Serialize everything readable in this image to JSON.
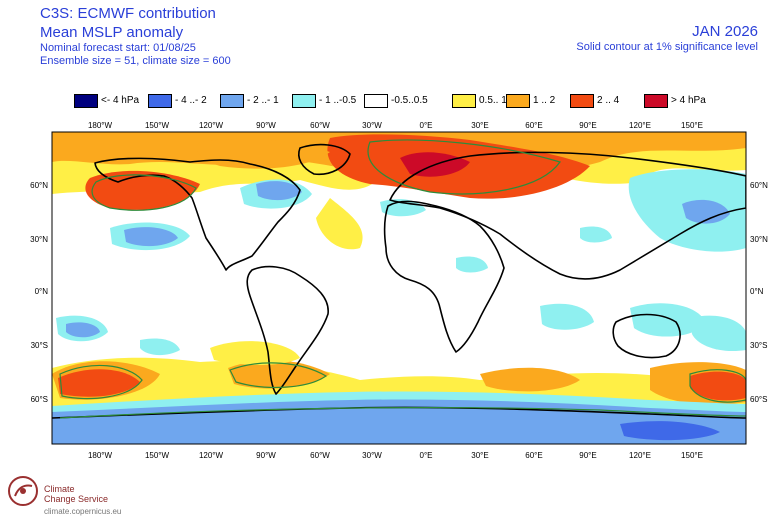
{
  "header": {
    "title_line1": "C3S: ECMWF contribution",
    "title_line2": "Mean MSLP anomaly",
    "forecast_start": "Nominal forecast start: 01/08/25",
    "ensemble": "Ensemble size = 51, climate size = 600",
    "month": "JAN 2026",
    "significance": "Solid contour at 1% significance level"
  },
  "legend": [
    {
      "label": "<- 4 hPa",
      "color": "#00007f"
    },
    {
      "label": "- 4 ..- 2",
      "color": "#3f69e8"
    },
    {
      "label": "- 2 ..- 1",
      "color": "#6fa6ee"
    },
    {
      "label": "- 1 ..-0.5",
      "color": "#8ff0f0"
    },
    {
      "label": "-0.5..0.5",
      "color": "#ffffff"
    },
    {
      "label": "0.5.. 1",
      "color": "#ffef46"
    },
    {
      "label": "1 .. 2",
      "color": "#fba91e"
    },
    {
      "label": "2 .. 4",
      "color": "#f24b12"
    },
    {
      "label": "> 4 hPa",
      "color": "#cc0a28"
    }
  ],
  "map": {
    "lon_labels": [
      "180°W",
      "150°W",
      "120°W",
      "90°W",
      "60°W",
      "30°W",
      "0°E",
      "30°E",
      "60°E",
      "90°E",
      "120°E",
      "150°E"
    ],
    "lat_labels_left": [
      "60°N",
      "30°N",
      "0°N",
      "30°S",
      "60°S"
    ],
    "lat_labels_right": [
      "60°N",
      "30°N",
      "0°N",
      "30°S",
      "60°S"
    ]
  },
  "footer": {
    "org_line1": "Climate",
    "org_line2": "Change Service",
    "url": "climate.copernicus.eu"
  },
  "colors": {
    "ocean_neutral": "#ffffff",
    "coastline": "#000000",
    "significance_contour": "#2e8b3a"
  }
}
